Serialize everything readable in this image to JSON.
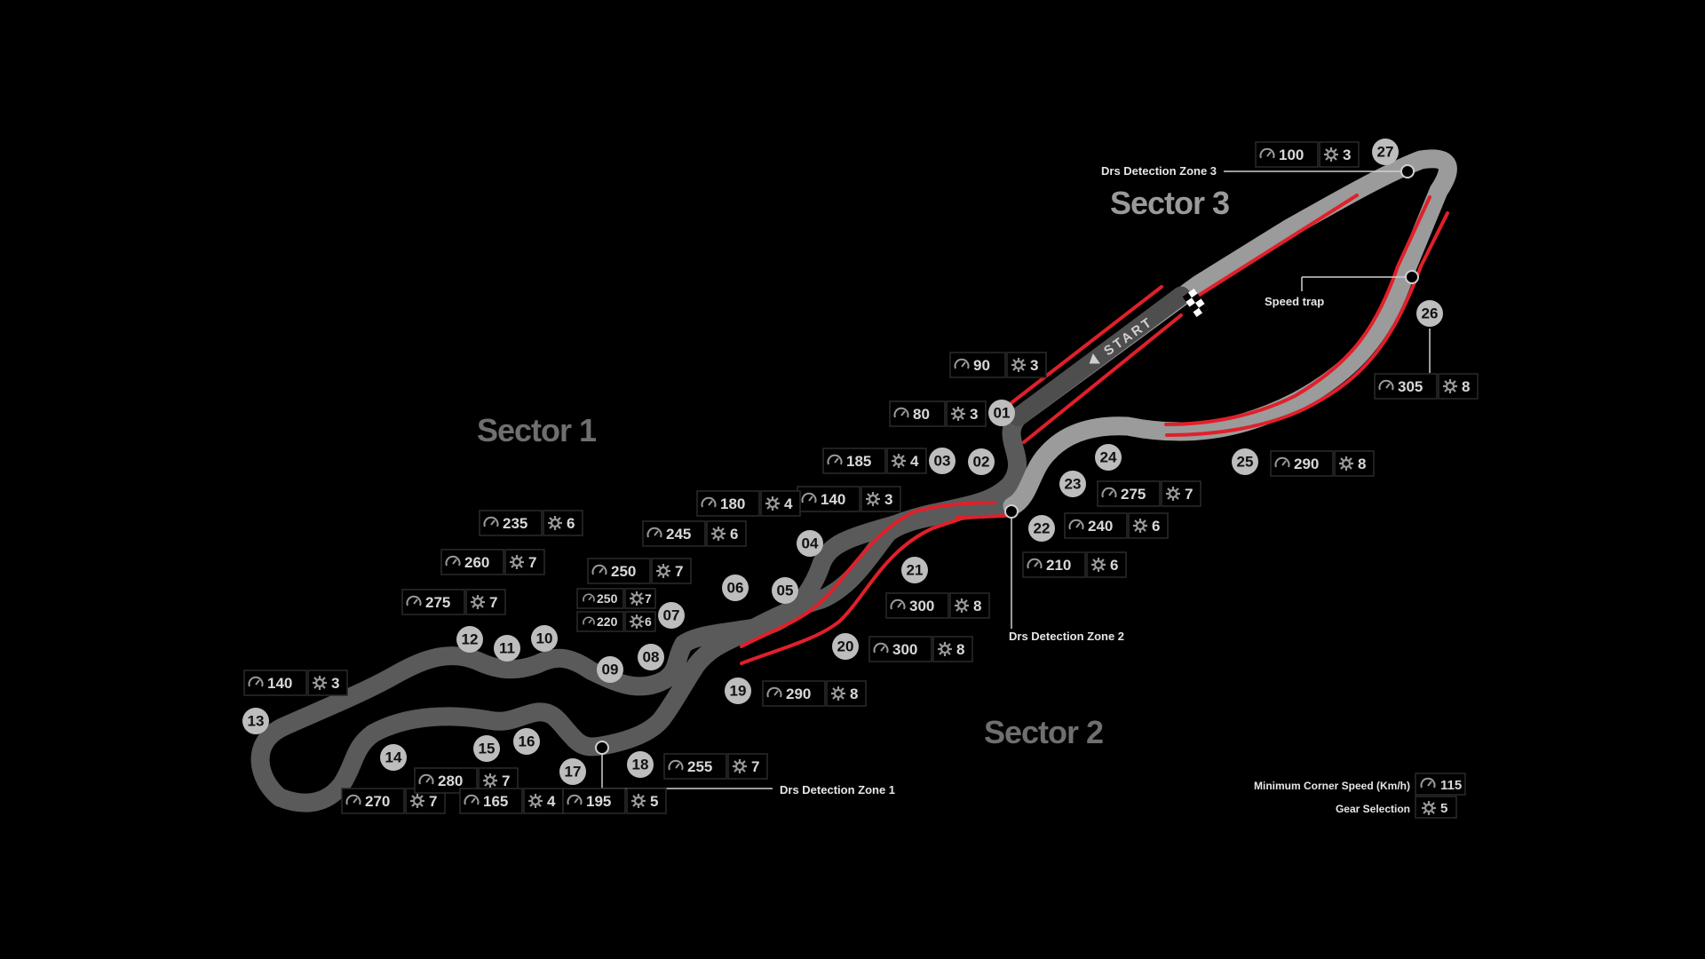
{
  "sectors": {
    "s1": "Sector 1",
    "s2": "Sector 2",
    "s3": "Sector 3"
  },
  "start_label": "START",
  "annotations": {
    "drs1": "Drs Detection Zone 1",
    "drs2": "Drs Detection Zone 2",
    "drs3": "Drs Detection Zone 3",
    "speed_trap": "Speed trap"
  },
  "legend": {
    "min_speed_label": "Minimum Corner Speed (Km/h)",
    "min_speed_value": "115",
    "gear_label": "Gear Selection",
    "gear_value": "5"
  },
  "icons": {
    "speed": "speedometer-icon",
    "gear": "gear-icon",
    "start": "checkered-flag-icon"
  },
  "colors": {
    "track_light": "#9b9b9b",
    "track_dark": "#555555",
    "drs_red": "#e0202a"
  },
  "turns": [
    {
      "num": "01",
      "speed": "90",
      "gear": "3"
    },
    {
      "num": "02",
      "speed": "80",
      "gear": "3"
    },
    {
      "num": "03",
      "speed": "185",
      "gear": "4"
    },
    {
      "num": "04",
      "speed": "140",
      "gear": "3"
    },
    {
      "num": "05",
      "speed": "180",
      "gear": "4"
    },
    {
      "num": "06",
      "speed": "245",
      "gear": "6"
    },
    {
      "num": "07",
      "speed": "250",
      "gear": "7"
    },
    {
      "num": "08",
      "speed": "250",
      "gear": "7"
    },
    {
      "num": "09",
      "speed": "220",
      "gear": "6"
    },
    {
      "num": "10",
      "speed": "235",
      "gear": "6"
    },
    {
      "num": "11",
      "speed": "260",
      "gear": "7"
    },
    {
      "num": "12",
      "speed": "275",
      "gear": "7"
    },
    {
      "num": "13",
      "speed": "140",
      "gear": "3"
    },
    {
      "num": "14",
      "speed": "270",
      "gear": "7"
    },
    {
      "num": "15",
      "speed": "280",
      "gear": "7"
    },
    {
      "num": "16",
      "speed": "165",
      "gear": "4"
    },
    {
      "num": "17",
      "speed": "195",
      "gear": "5"
    },
    {
      "num": "18",
      "speed": "255",
      "gear": "7"
    },
    {
      "num": "19",
      "speed": "290",
      "gear": "8"
    },
    {
      "num": "20",
      "speed": "300",
      "gear": "8"
    },
    {
      "num": "21",
      "speed": "300",
      "gear": "8"
    },
    {
      "num": "22",
      "speed": "210",
      "gear": "6"
    },
    {
      "num": "23",
      "speed": "240",
      "gear": "6"
    },
    {
      "num": "24",
      "speed": "275",
      "gear": "7"
    },
    {
      "num": "25",
      "speed": "290",
      "gear": "8"
    },
    {
      "num": "26",
      "speed": "305",
      "gear": "8"
    },
    {
      "num": "27",
      "speed": "100",
      "gear": "3"
    }
  ]
}
